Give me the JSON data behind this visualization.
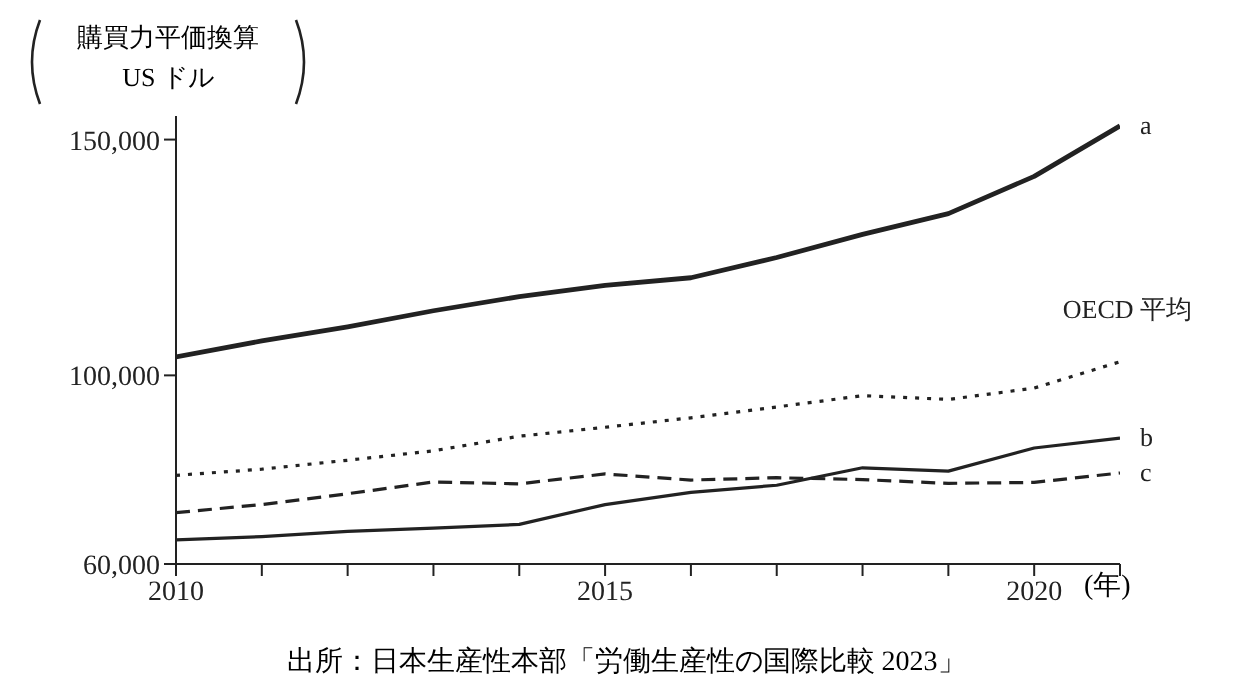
{
  "chart_data": {
    "type": "line",
    "ylabel": "購買力平価換算\nUS ドル",
    "xlabel": "(年)",
    "annotations": [
      "出所：日本生産性本部「労働生産性の国際比較 2023」"
    ],
    "x": [
      2010,
      2011,
      2012,
      2013,
      2014,
      2015,
      2016,
      2017,
      2018,
      2019,
      2020,
      2021
    ],
    "series": [
      {
        "name": "a",
        "color": "#222222",
        "line_style": "solid",
        "values": [
          103900,
          107300,
          110300,
          113700,
          116700,
          119100,
          120700,
          125000,
          129900,
          134300,
          142200,
          152900
        ]
      },
      {
        "name": "OECD 平均",
        "color": "#222222",
        "line_style": "dotted",
        "values": [
          78800,
          80100,
          82000,
          84000,
          87100,
          89000,
          91000,
          93300,
          95700,
          94900,
          97300,
          102900
        ]
      },
      {
        "name": "b",
        "color": "#222222",
        "line_style": "solid",
        "values": [
          65100,
          65800,
          66900,
          67600,
          68400,
          72600,
          75200,
          76700,
          80400,
          79700,
          84600,
          86700
        ]
      },
      {
        "name": "c",
        "color": "#222222",
        "line_style": "dashed",
        "values": [
          70900,
          72600,
          74900,
          77400,
          77000,
          79100,
          77800,
          78300,
          77900,
          77100,
          77300,
          79300
        ]
      }
    ],
    "xlim": [
      2010,
      2021
    ],
    "xticks": [
      2010,
      {
        "value": 2011,
        "label": null
      },
      {
        "value": 2012,
        "label": null
      },
      {
        "value": 2013,
        "label": null
      },
      {
        "value": 2014,
        "label": null
      },
      2015,
      {
        "value": 2016,
        "label": null
      },
      {
        "value": 2017,
        "label": null
      },
      {
        "value": 2018,
        "label": null
      },
      {
        "value": 2019,
        "label": null
      },
      2020,
      {
        "value": 2021,
        "label": null
      }
    ],
    "ylim": [
      60000,
      155000
    ],
    "yticks": [
      {
        "value": 60000,
        "label": "60,000"
      },
      {
        "value": 100000,
        "label": "100,000"
      },
      {
        "value": 150000,
        "label": "150,000"
      }
    ],
    "grid": false,
    "legend": false
  }
}
